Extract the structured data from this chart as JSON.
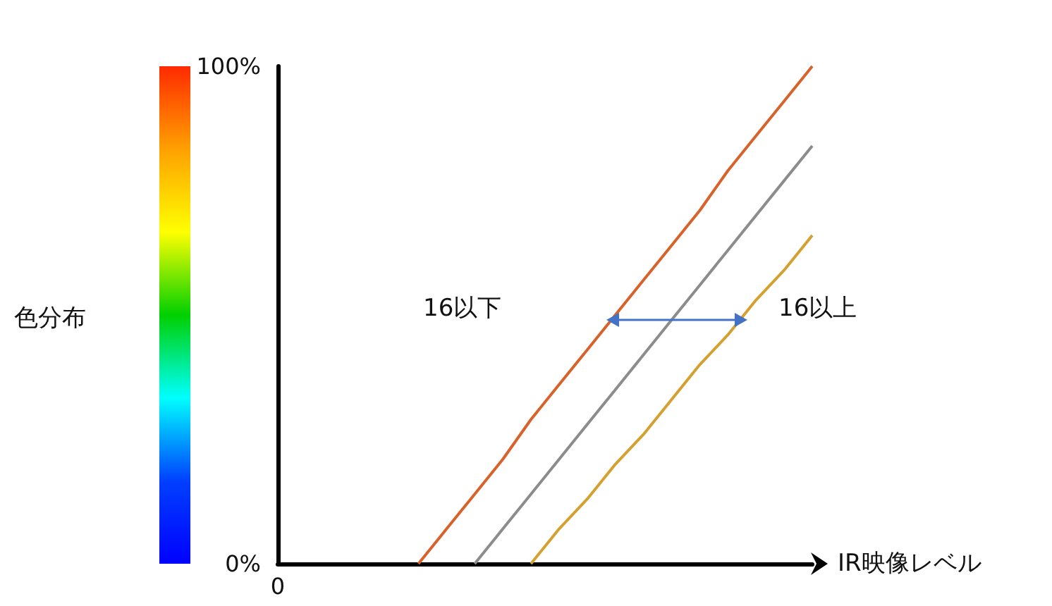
{
  "chart_data": {
    "type": "line",
    "xlabel": "IR映像レベル",
    "categories": [
      "0",
      null,
      null,
      null,
      null,
      null,
      null,
      null,
      null,
      null,
      null,
      null,
      null,
      null,
      null,
      null,
      null,
      null,
      null,
      null
    ],
    "series": [
      {
        "color": "#d9622b",
        "values": [
          null,
          null,
          null,
          null,
          null,
          0,
          7,
          14,
          21,
          29,
          36,
          43,
          50,
          57,
          64,
          71,
          79,
          86,
          93,
          100
        ]
      },
      {
        "color": "#8c8c8c",
        "values": [
          null,
          null,
          null,
          null,
          null,
          null,
          null,
          0,
          7,
          14,
          21,
          28,
          35,
          42,
          49,
          56,
          63,
          70,
          77,
          84
        ]
      },
      {
        "color": "#d4a030",
        "values": [
          null,
          null,
          null,
          null,
          null,
          null,
          null,
          null,
          null,
          0,
          7,
          13,
          20,
          26,
          33,
          40,
          46,
          53,
          59,
          66
        ]
      }
    ],
    "ylim": [
      0,
      100
    ],
    "yticks": [
      {
        "value": 0,
        "label": "0%"
      },
      {
        "value": 100,
        "label": "100%"
      }
    ],
    "annotations": [
      "16以下",
      "16以上",
      "色分布"
    ],
    "marker": "none",
    "grid": false
  }
}
